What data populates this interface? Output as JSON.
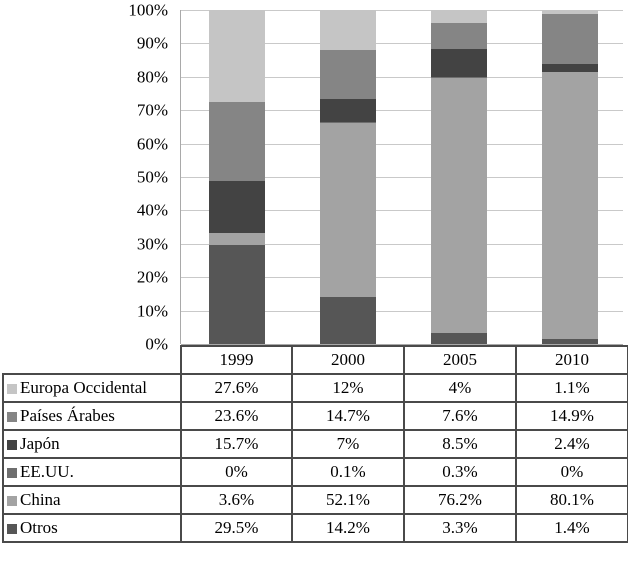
{
  "chart_data": {
    "type": "bar",
    "subtype": "stacked-100-percent-column",
    "title": "",
    "xlabel": "",
    "ylabel": "",
    "categories": [
      "1999",
      "2000",
      "2005",
      "2010"
    ],
    "series": [
      {
        "name": "Europa Occidental",
        "color": "#c5c5c5",
        "values": [
          27.6,
          12,
          4,
          1.1
        ],
        "display": [
          "27.6%",
          "12%",
          "4%",
          "1.1%"
        ]
      },
      {
        "name": "Países Árabes",
        "color": "#858585",
        "values": [
          23.6,
          14.7,
          7.6,
          14.9
        ],
        "display": [
          "23.6%",
          "14.7%",
          "7.6%",
          "14.9%"
        ]
      },
      {
        "name": "Japón",
        "color": "#434343",
        "values": [
          15.7,
          7,
          8.5,
          2.4
        ],
        "display": [
          "15.7%",
          "7%",
          "8.5%",
          "2.4%"
        ]
      },
      {
        "name": "EE.UU.",
        "color": "#6e6e6e",
        "values": [
          0,
          0.1,
          0.3,
          0
        ],
        "display": [
          "0%",
          "0.1%",
          "0.3%",
          "0%"
        ]
      },
      {
        "name": "China",
        "color": "#a3a3a3",
        "values": [
          3.6,
          52.1,
          76.2,
          80.1
        ],
        "display": [
          "3.6%",
          "52.1%",
          "76.2%",
          "80.1%"
        ]
      },
      {
        "name": "Otros",
        "color": "#565656",
        "values": [
          29.5,
          14.2,
          3.3,
          1.4
        ],
        "display": [
          "29.5%",
          "14.2%",
          "3.3%",
          "1.4%"
        ]
      }
    ],
    "stack_order_bottom_to_top": [
      "Otros",
      "China",
      "EE.UU.",
      "Japón",
      "Países Árabes",
      "Europa Occidental"
    ],
    "y_axis": {
      "ticks": [
        "100%",
        "90%",
        "80%",
        "70%",
        "60%",
        "50%",
        "40%",
        "30%",
        "20%",
        "10%",
        "0%"
      ],
      "min": 0,
      "max": 100,
      "unit": "%"
    },
    "grid": true,
    "legend_position": "table-below-chart"
  },
  "colors": {
    "gridline": "#c9c9c9",
    "axis_line": "#a9a9a9",
    "table_border": "#4a4a4a",
    "background": "#ffffff",
    "text": "#000000"
  }
}
